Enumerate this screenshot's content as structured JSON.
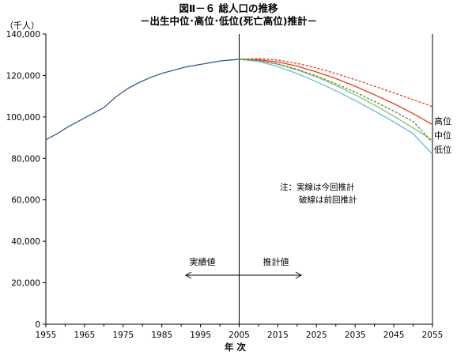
{
  "chart_data": {
    "type": "line",
    "title": "図Ⅱ－６ 総人口の推移",
    "subtitle": "－出生中位･高位･低位(死亡高位)推計－",
    "ylabel_unit": "（千人）",
    "xlabel": "年 次",
    "xlim": [
      1955,
      2055
    ],
    "ylim": [
      0,
      140000
    ],
    "x_ticks": [
      "1955",
      "1965",
      "1975",
      "1985",
      "1995",
      "2005",
      "2015",
      "2025",
      "2035",
      "2045",
      "2055"
    ],
    "y_ticks": [
      "0",
      "20,000",
      "40,000",
      "60,000",
      "80,000",
      "100,000",
      "120,000",
      "140,000"
    ],
    "divider_year": 2005,
    "label_actual": "実績値",
    "label_projection": "推計値",
    "note_line1": "注：実線は今回推計",
    "note_line2": "破線は前回推計",
    "series": [
      {
        "name": "",
        "style": "solid",
        "color": "#3a5a8c",
        "x": [
          1955,
          1958,
          1961,
          1964,
          1967,
          1970,
          1973,
          1976,
          1979,
          1982,
          1985,
          1988,
          1991,
          1994,
          1997,
          2000,
          2003,
          2005
        ],
        "y": [
          89000,
          92000,
          95500,
          98500,
          101500,
          104500,
          109500,
          113500,
          116500,
          119000,
          121000,
          122500,
          124000,
          125000,
          126000,
          127000,
          127500,
          127800
        ]
      },
      {
        "name": "高位",
        "style": "solid",
        "color": "#e8391f",
        "x": [
          2005,
          2010,
          2015,
          2020,
          2025,
          2030,
          2035,
          2040,
          2045,
          2050,
          2055
        ],
        "y": [
          127800,
          127600,
          126500,
          124500,
          121700,
          118500,
          114800,
          110700,
          106400,
          101600,
          96300
        ]
      },
      {
        "name": "中位",
        "style": "solid",
        "color": "#8cc06a",
        "x": [
          2005,
          2010,
          2015,
          2020,
          2025,
          2030,
          2035,
          2040,
          2045,
          2050,
          2055
        ],
        "y": [
          127800,
          127200,
          125400,
          122700,
          119300,
          115200,
          110700,
          105700,
          100400,
          94700,
          88700
        ]
      },
      {
        "name": "低位",
        "style": "solid",
        "color": "#6fb6dd",
        "x": [
          2005,
          2010,
          2015,
          2020,
          2025,
          2030,
          2035,
          2040,
          2045,
          2050,
          2055
        ],
        "y": [
          127800,
          126800,
          124300,
          120900,
          117000,
          112600,
          107900,
          102900,
          97600,
          91900,
          82000
        ]
      },
      {
        "name": "",
        "style": "dashed",
        "color": "#e8391f",
        "x": [
          2005,
          2010,
          2015,
          2020,
          2025,
          2030,
          2035,
          2040,
          2045,
          2050,
          2055
        ],
        "y": [
          127800,
          128100,
          127400,
          125800,
          123600,
          120900,
          118000,
          114800,
          111600,
          108300,
          105000
        ]
      },
      {
        "name": "",
        "style": "dashed",
        "color": "#4a8c3a",
        "x": [
          2005,
          2010,
          2015,
          2020,
          2025,
          2030,
          2035,
          2040,
          2045,
          2050,
          2055
        ],
        "y": [
          127800,
          127200,
          125600,
          123000,
          119800,
          116000,
          112000,
          107500,
          102800,
          97800,
          87700
        ]
      }
    ],
    "right_labels": [
      "高位",
      "中位",
      "低位"
    ]
  }
}
